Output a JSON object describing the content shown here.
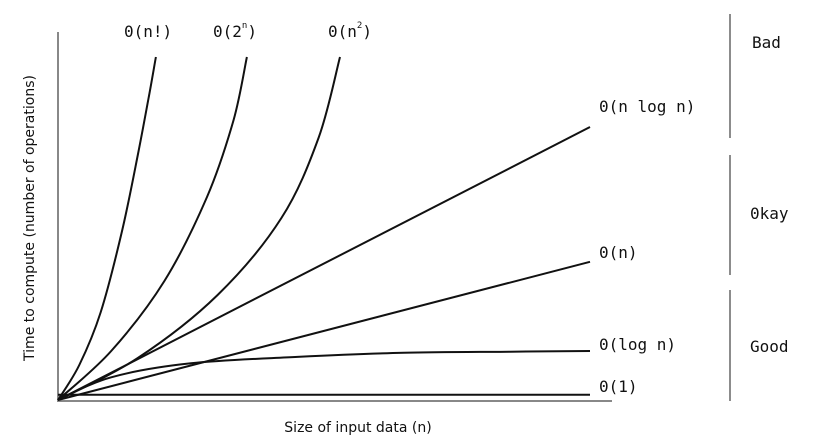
{
  "chart_data": {
    "type": "line",
    "xlabel": "Size of input data (n)",
    "ylabel": "Time to compute (number of operations)",
    "xlim": [
      0,
      100
    ],
    "ylim": [
      0,
      100
    ],
    "grid": false,
    "series": [
      {
        "name": "O(n!)",
        "label_parts": [
          "0(n!)"
        ],
        "x": [
          0,
          4,
          8,
          12,
          15,
          17,
          18.4
        ],
        "y": [
          0,
          10,
          25,
          48,
          70,
          86,
          98
        ]
      },
      {
        "name": "O(2^n)",
        "label_parts": [
          "0(2",
          "n",
          ")"
        ],
        "x": [
          0,
          10,
          20,
          28,
          33,
          35.5
        ],
        "y": [
          0,
          14,
          34,
          58,
          80,
          98
        ]
      },
      {
        "name": "O(n^2)",
        "label_parts": [
          "0(n",
          "2",
          ")"
        ],
        "x": [
          0,
          15,
          30,
          42,
          49,
          53
        ],
        "y": [
          0,
          12,
          30,
          52,
          75,
          98
        ]
      },
      {
        "name": "O(n log n)",
        "label_parts": [
          "0(n log n)"
        ],
        "x": [
          0,
          100
        ],
        "y": [
          0,
          78
        ]
      },
      {
        "name": "O(n)",
        "label_parts": [
          "0(n)"
        ],
        "x": [
          0,
          100
        ],
        "y": [
          0,
          39.5
        ]
      },
      {
        "name": "O(log n)",
        "label_parts": [
          "0(log n)"
        ],
        "x": [
          0,
          10,
          25,
          45,
          65,
          85,
          100
        ],
        "y": [
          0,
          6.5,
          10.5,
          12.3,
          13.5,
          13.8,
          14
        ]
      },
      {
        "name": "O(1)",
        "label_parts": [
          "0(1)"
        ],
        "x": [
          0,
          100
        ],
        "y": [
          1.5,
          1.5
        ]
      }
    ],
    "categories": [
      "Bad",
      "0kay",
      "Good"
    ]
  }
}
